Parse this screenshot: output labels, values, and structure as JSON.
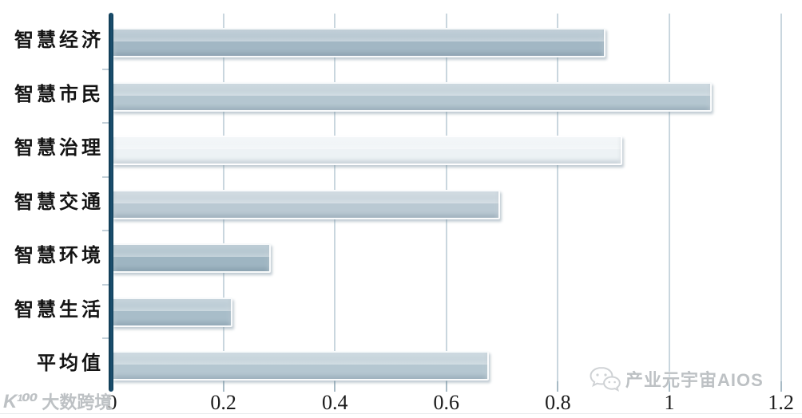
{
  "chart_data": {
    "type": "bar",
    "orientation": "horizontal",
    "title": "",
    "categories": [
      "智慧经济",
      "智慧市民",
      "智慧治理",
      "智慧交通",
      "智慧环境",
      "智慧生活",
      "平均值"
    ],
    "values": [
      0.88,
      1.07,
      0.91,
      0.69,
      0.28,
      0.21,
      0.67
    ],
    "bar_colors": [
      "#a2b7c4",
      "#b4c6d0",
      "#edf2f5",
      "#bac9d3",
      "#9eb5c2",
      "#a8bdc9",
      "#b5c7d1"
    ],
    "xlim": [
      0,
      1.2
    ],
    "x_tick_labels": [
      "0",
      "0.2",
      "0.4",
      "0.6",
      "0.8",
      "1",
      "1.2"
    ],
    "x_tick_values": [
      0,
      0.2,
      0.4,
      0.6,
      0.8,
      1,
      1.2
    ],
    "grid": true,
    "legend": false,
    "xlabel": "",
    "ylabel": ""
  },
  "watermarks": {
    "left": {
      "logo": "K¹⁰⁰",
      "text": "大数跨境"
    },
    "right": {
      "icon": "wechat-icon",
      "text": "产业元宇宙AIOS"
    }
  },
  "colors": {
    "axis": "#16455e",
    "gridline": "#c9d6de",
    "tick_mark": "#a7bac5",
    "label_text": "#141414",
    "watermark": "#bdc1c4"
  }
}
